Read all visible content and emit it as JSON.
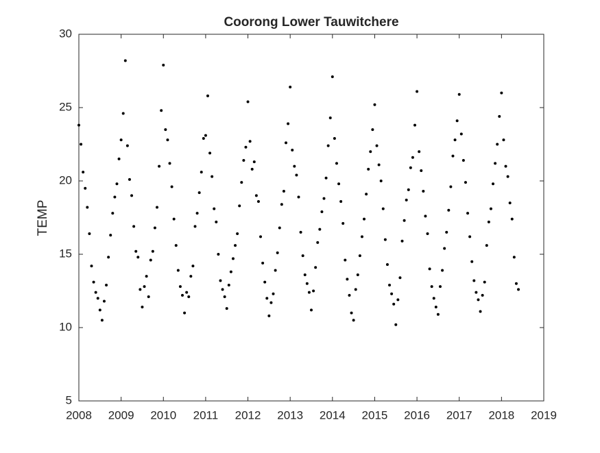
{
  "chart_data": {
    "type": "scatter",
    "title": "Coorong Lower Tauwitchere",
    "ylabel": "TEMP",
    "color": "#000000",
    "xlim": [
      2008,
      2019
    ],
    "xticks": [
      2008,
      2009,
      2010,
      2011,
      2012,
      2013,
      2014,
      2015,
      2016,
      2017,
      2018,
      2019
    ],
    "ylim": [
      5,
      30
    ],
    "yticks": [
      5,
      10,
      15,
      20,
      25,
      30
    ],
    "x": [
      2008,
      2008.05,
      2008.1,
      2008.15,
      2008.2,
      2008.25,
      2008.3,
      2008.35,
      2008.4,
      2008.45,
      2008.5,
      2008.55,
      2008.6,
      2008.65,
      2008.7,
      2008.75,
      2008.8,
      2008.85,
      2008.9,
      2008.95,
      2009,
      2009.05,
      2009.1,
      2009.15,
      2009.2,
      2009.25,
      2009.3,
      2009.35,
      2009.4,
      2009.45,
      2009.5,
      2009.55,
      2009.6,
      2009.65,
      2009.7,
      2009.75,
      2009.8,
      2009.85,
      2009.9,
      2009.95,
      2010,
      2010.05,
      2010.1,
      2010.15,
      2010.2,
      2010.25,
      2010.3,
      2010.35,
      2010.4,
      2010.45,
      2010.5,
      2010.55,
      2010.6,
      2010.65,
      2010.7,
      2010.75,
      2010.8,
      2010.85,
      2010.9,
      2010.95,
      2011,
      2011.05,
      2011.1,
      2011.15,
      2011.2,
      2011.25,
      2011.3,
      2011.35,
      2011.4,
      2011.45,
      2011.5,
      2011.55,
      2011.6,
      2011.65,
      2011.7,
      2011.75,
      2011.8,
      2011.85,
      2011.9,
      2011.95,
      2012,
      2012.05,
      2012.1,
      2012.15,
      2012.2,
      2012.25,
      2012.3,
      2012.35,
      2012.4,
      2012.45,
      2012.5,
      2012.55,
      2012.6,
      2012.65,
      2012.7,
      2012.75,
      2012.8,
      2012.85,
      2012.9,
      2012.95,
      2013,
      2013.05,
      2013.1,
      2013.15,
      2013.2,
      2013.25,
      2013.3,
      2013.35,
      2013.4,
      2013.45,
      2013.5,
      2013.55,
      2013.6,
      2013.65,
      2013.7,
      2013.75,
      2013.8,
      2013.85,
      2013.9,
      2013.95,
      2014,
      2014.05,
      2014.1,
      2014.15,
      2014.2,
      2014.25,
      2014.3,
      2014.35,
      2014.4,
      2014.45,
      2014.5,
      2014.55,
      2014.6,
      2014.65,
      2014.7,
      2014.75,
      2014.8,
      2014.85,
      2014.9,
      2014.95,
      2015,
      2015.05,
      2015.1,
      2015.15,
      2015.2,
      2015.25,
      2015.3,
      2015.35,
      2015.4,
      2015.45,
      2015.5,
      2015.55,
      2015.6,
      2015.65,
      2015.7,
      2015.75,
      2015.8,
      2015.85,
      2015.9,
      2015.95,
      2016,
      2016.05,
      2016.1,
      2016.15,
      2016.2,
      2016.25,
      2016.3,
      2016.35,
      2016.4,
      2016.45,
      2016.5,
      2016.55,
      2016.6,
      2016.65,
      2016.7,
      2016.75,
      2016.8,
      2016.85,
      2016.9,
      2016.95,
      2017,
      2017.05,
      2017.1,
      2017.15,
      2017.2,
      2017.25,
      2017.3,
      2017.35,
      2017.4,
      2017.45,
      2017.5,
      2017.55,
      2017.6,
      2017.65,
      2017.7,
      2017.75,
      2017.8,
      2017.85,
      2017.9,
      2017.95,
      2018,
      2018.05,
      2018.1,
      2018.15,
      2018.2,
      2018.25,
      2018.3,
      2018.35,
      2018.4
    ],
    "values": [
      23.8,
      22.5,
      20.6,
      19.5,
      18.2,
      16.4,
      14.2,
      13.1,
      12.4,
      12.0,
      11.2,
      10.5,
      11.8,
      12.9,
      14.8,
      16.3,
      17.8,
      18.9,
      19.8,
      21.5,
      22.8,
      24.6,
      28.2,
      22.4,
      20.1,
      19.0,
      16.9,
      15.2,
      14.8,
      12.6,
      11.4,
      12.8,
      13.5,
      12.1,
      14.6,
      15.2,
      16.8,
      18.2,
      21.0,
      24.8,
      27.9,
      23.5,
      22.8,
      21.2,
      19.6,
      17.4,
      15.6,
      13.9,
      12.8,
      12.2,
      11.0,
      12.4,
      12.1,
      13.5,
      14.2,
      16.9,
      17.8,
      19.2,
      20.6,
      22.9,
      23.1,
      25.8,
      21.9,
      20.3,
      18.1,
      17.2,
      15.0,
      13.2,
      12.6,
      12.1,
      11.3,
      12.9,
      13.8,
      14.7,
      15.6,
      16.4,
      18.3,
      19.9,
      21.4,
      22.3,
      25.4,
      22.7,
      20.8,
      21.3,
      19.0,
      18.6,
      16.2,
      14.4,
      13.1,
      12.0,
      10.8,
      11.7,
      12.3,
      13.9,
      15.1,
      16.8,
      18.4,
      19.3,
      22.6,
      23.9,
      26.4,
      22.1,
      21.0,
      20.4,
      18.9,
      16.5,
      14.9,
      13.6,
      13.0,
      12.4,
      11.2,
      12.5,
      14.1,
      15.8,
      16.7,
      17.9,
      18.8,
      20.2,
      22.4,
      24.3,
      27.1,
      22.9,
      21.2,
      19.8,
      18.6,
      17.1,
      14.6,
      13.3,
      12.2,
      11.0,
      10.5,
      12.6,
      13.6,
      14.9,
      16.2,
      17.4,
      19.1,
      20.8,
      22.0,
      23.5,
      25.2,
      22.4,
      21.1,
      20.0,
      18.1,
      16.0,
      14.3,
      12.9,
      12.3,
      11.6,
      10.2,
      11.9,
      13.4,
      15.9,
      17.3,
      18.7,
      19.4,
      20.9,
      21.6,
      23.8,
      26.1,
      22.0,
      20.7,
      19.3,
      17.6,
      16.4,
      14.0,
      12.8,
      12.0,
      11.4,
      10.9,
      12.8,
      13.9,
      15.4,
      16.5,
      18.0,
      19.6,
      21.7,
      22.8,
      24.1,
      25.9,
      23.2,
      21.4,
      19.9,
      17.8,
      16.2,
      14.5,
      13.2,
      12.4,
      11.9,
      11.1,
      12.2,
      13.1,
      15.6,
      17.2,
      18.1,
      19.8,
      21.2,
      22.5,
      24.4,
      26.0,
      22.8,
      21.0,
      20.3,
      18.5,
      17.4,
      14.8,
      13.0,
      12.6
    ]
  }
}
